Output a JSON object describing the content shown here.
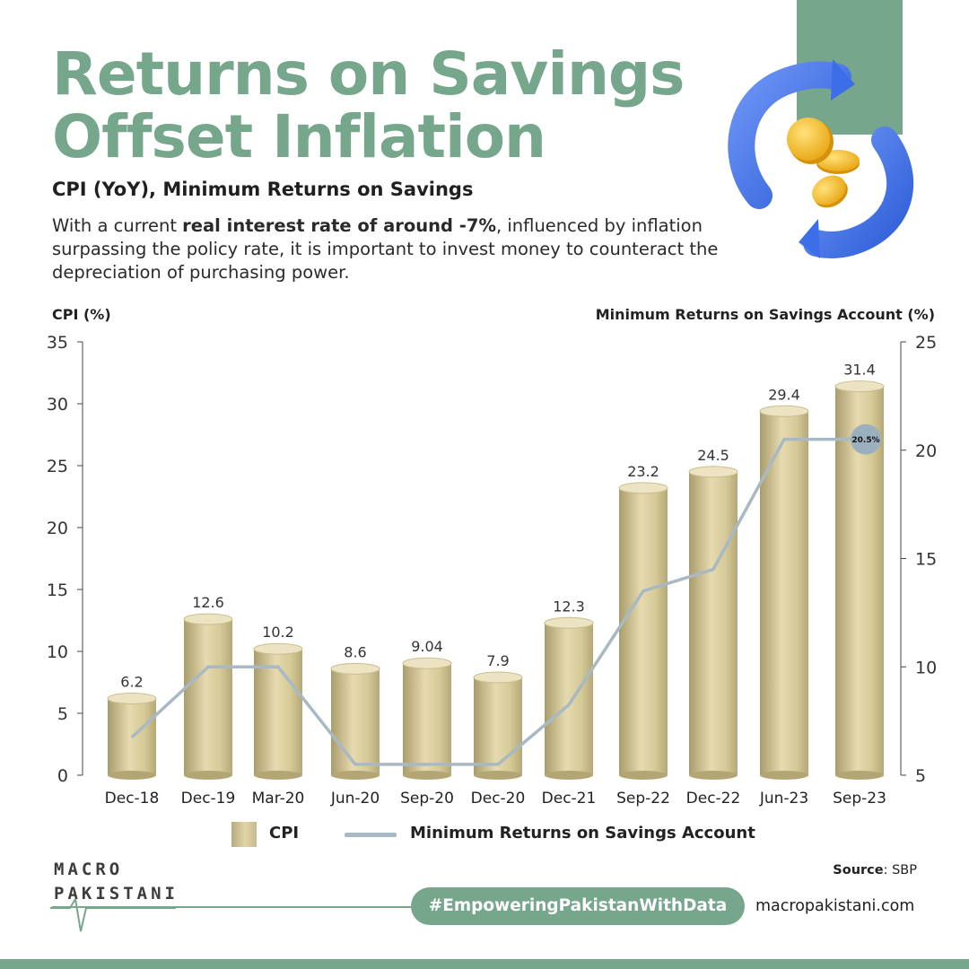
{
  "header": {
    "title_line1": "Returns on Savings",
    "title_line2": "Offset Inflation",
    "subtitle": "CPI (YoY), Minimum Returns on Savings",
    "description_before": "With a current ",
    "description_bold": "real interest rate of around -7%",
    "description_after": ", influenced by inflation surpassing the policy rate, it is important to invest money to counteract the depreciation of purchasing power."
  },
  "chart_data": {
    "type": "bar",
    "ylabel_left": "CPI (%)",
    "ylabel_right": "Minimum Returns on Savings Account (%)",
    "categories": [
      "Dec-18",
      "Dec-19",
      "Mar-20",
      "Jun-20",
      "Sep-20",
      "Dec-20",
      "Dec-21",
      "Sep-22",
      "Dec-22",
      "Jun-23",
      "Sep-23"
    ],
    "series": [
      {
        "name": "CPI",
        "type": "bar",
        "axis": "left",
        "values": [
          6.2,
          12.6,
          10.2,
          8.6,
          9.04,
          7.9,
          12.3,
          23.2,
          24.5,
          29.4,
          31.4
        ],
        "labels": [
          "6.2",
          "12.6",
          "10.2",
          "8.6",
          "9.04",
          "7.9",
          "12.3",
          "23.2",
          "24.5",
          "29.4",
          "31.4"
        ],
        "color": "#d9cd9d"
      },
      {
        "name": "Minimum Returns on Savings Account",
        "type": "line",
        "axis": "right",
        "values": [
          6.75,
          10.0,
          10.0,
          5.5,
          5.5,
          5.5,
          8.25,
          13.5,
          14.5,
          20.5,
          20.5
        ],
        "color": "#a9b9c3"
      }
    ],
    "left_axis": {
      "ylim": [
        0,
        35
      ],
      "ticks": [
        0,
        5,
        10,
        15,
        20,
        25,
        30,
        35
      ]
    },
    "right_axis": {
      "ylim": [
        5,
        25
      ],
      "ticks": [
        5,
        10,
        15,
        20,
        25
      ]
    },
    "annotation": {
      "text": "20.5%",
      "category": "Sep-23",
      "series": "Minimum Returns on Savings Account"
    },
    "grid": false,
    "legend": "bottom-center"
  },
  "legend": {
    "cpi_label": "CPI",
    "returns_label": "Minimum Returns on Savings Account"
  },
  "footer": {
    "logo_line1": "MACRO",
    "logo_line2": "PAKISTANI",
    "source_label": "Source",
    "source_value": ": SBP",
    "hashtag": "#EmpoweringPakistanWithData",
    "website": "macropakistani.com"
  },
  "colors": {
    "accent_green": "#76a68b",
    "bar_fill": "#d9cd9d",
    "line": "#a9b9c3",
    "arrow_blue": "#3b6ee8",
    "coin_gold": "#f2b61c"
  },
  "icons": [
    "refresh-arrows-icon",
    "gold-coins-icon"
  ]
}
